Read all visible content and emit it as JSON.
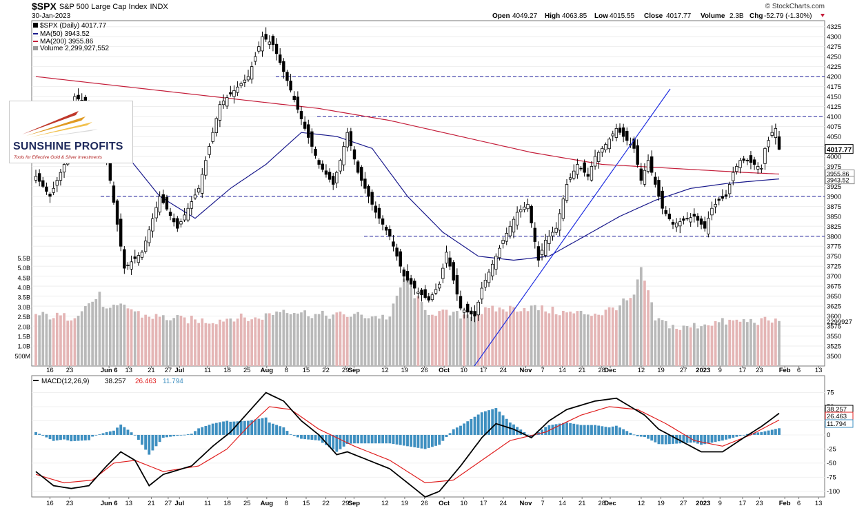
{
  "header": {
    "symbol": "$SPX",
    "name": "S&P 500 Large Cap Index",
    "exchange": "INDX",
    "date": "30-Jan-2023",
    "credit": "© StockCharts.com",
    "open_label": "Open",
    "open": "4049.27",
    "high_label": "High",
    "high": "4063.85",
    "low_label": "Low",
    "low": "4015.55",
    "close_label": "Close",
    "close": "4017.77",
    "volume_label": "Volume",
    "volume": "2.3B",
    "chg_label": "Chg",
    "chg": "-52.79 (-1.30%)"
  },
  "logo": {
    "brand": "SUNSHINE PROFITS",
    "tagline": "Tools for Effective Gold & Silver Investments"
  },
  "legend": {
    "price": "$SPX (Daily) 4017.77",
    "ma50": "MA(50) 3943.52",
    "ma200": "MA(200) 3955.86",
    "volume": "Volume 2,299,927,552",
    "macd_name": "MACD(12,26,9)",
    "macd": "38.257",
    "signal": "26.463",
    "hist": "11.794"
  },
  "colors": {
    "ma50": "#1a1a8c",
    "ma200": "#c41e3a",
    "hline": "#1a1a9a",
    "trend": "#1f2ee0",
    "vol_up": "#e4b5b5",
    "vol_down": "#b9b9b9",
    "hist": "#3e8fc0",
    "macd": "#000000",
    "signal": "#e02020"
  },
  "chart_data": [
    {
      "type": "candlestick",
      "title": "$SPX (Daily)",
      "ylim": [
        3475,
        4340
      ],
      "y_ticks": [
        3500,
        3525,
        3550,
        3575,
        3600,
        3625,
        3650,
        3675,
        3700,
        3725,
        3750,
        3775,
        3800,
        3825,
        3850,
        3875,
        3900,
        3925,
        3950,
        3975,
        4000,
        4025,
        4050,
        4075,
        4100,
        4125,
        4150,
        4175,
        4200,
        4225,
        4250,
        4275,
        4300,
        4325
      ],
      "x_ticks": [
        "16",
        "23",
        "Jun 6",
        "13",
        "21",
        "27",
        "Jul",
        "11",
        "18",
        "25",
        "Aug",
        "8",
        "15",
        "22",
        "29",
        "Sep",
        "12",
        "19",
        "26",
        "Oct",
        "10",
        "17",
        "24",
        "Nov",
        "7",
        "14",
        "21",
        "28",
        "Dec",
        "12",
        "19",
        "27",
        "2023",
        "9",
        "17",
        "23",
        "Feb",
        "6",
        "13"
      ],
      "x_tick_dates": [
        "2022-05-16",
        "2022-05-23",
        "2022-06-06",
        "2022-06-13",
        "2022-06-21",
        "2022-06-27",
        "2022-07-01",
        "2022-07-11",
        "2022-07-18",
        "2022-07-25",
        "2022-08-01",
        "2022-08-08",
        "2022-08-15",
        "2022-08-22",
        "2022-08-29",
        "2022-09-01",
        "2022-09-12",
        "2022-09-19",
        "2022-09-26",
        "2022-10-03",
        "2022-10-10",
        "2022-10-17",
        "2022-10-24",
        "2022-11-01",
        "2022-11-07",
        "2022-11-14",
        "2022-11-21",
        "2022-11-28",
        "2022-12-01",
        "2022-12-12",
        "2022-12-19",
        "2022-12-27",
        "2023-01-03",
        "2023-01-09",
        "2023-01-17",
        "2023-01-23",
        "2023-02-01",
        "2023-02-06",
        "2023-02-13"
      ],
      "close_key": [
        [
          0,
          3950
        ],
        [
          4,
          3900
        ],
        [
          8,
          3980
        ],
        [
          11,
          4150
        ],
        [
          15,
          4125
        ],
        [
          19,
          4050
        ],
        [
          25,
          3720
        ],
        [
          30,
          3760
        ],
        [
          35,
          3900
        ],
        [
          40,
          3820
        ],
        [
          46,
          3920
        ],
        [
          52,
          4130
        ],
        [
          60,
          4200
        ],
        [
          64,
          4300
        ],
        [
          67,
          4280
        ],
        [
          71,
          4190
        ],
        [
          76,
          4070
        ],
        [
          80,
          3980
        ],
        [
          84,
          3930
        ],
        [
          86,
          3990
        ],
        [
          88,
          4060
        ],
        [
          91,
          3960
        ],
        [
          96,
          3860
        ],
        [
          100,
          3800
        ],
        [
          104,
          3700
        ],
        [
          108,
          3660
        ],
        [
          111,
          3640
        ],
        [
          114,
          3680
        ],
        [
          116,
          3760
        ],
        [
          120,
          3620
        ],
        [
          124,
          3600
        ],
        [
          126,
          3670
        ],
        [
          129,
          3730
        ],
        [
          132,
          3790
        ],
        [
          136,
          3860
        ],
        [
          139,
          3880
        ],
        [
          142,
          3740
        ],
        [
          144,
          3790
        ],
        [
          147,
          3820
        ],
        [
          150,
          3930
        ],
        [
          153,
          3980
        ],
        [
          156,
          3950
        ],
        [
          158,
          4000
        ],
        [
          161,
          4030
        ],
        [
          164,
          4070
        ],
        [
          166,
          4050
        ],
        [
          169,
          4020
        ],
        [
          171,
          3940
        ],
        [
          173,
          3990
        ],
        [
          175,
          3930
        ],
        [
          177,
          3870
        ],
        [
          180,
          3830
        ],
        [
          183,
          3840
        ],
        [
          186,
          3850
        ],
        [
          189,
          3820
        ],
        [
          191,
          3870
        ],
        [
          193,
          3890
        ],
        [
          195,
          3900
        ],
        [
          197,
          3960
        ],
        [
          199,
          3990
        ],
        [
          201,
          3990
        ],
        [
          203,
          3980
        ],
        [
          205,
          3970
        ],
        [
          206,
          4020
        ],
        [
          208,
          4060
        ],
        [
          209,
          4070
        ],
        [
          210,
          4017.77
        ]
      ],
      "ma50_key": [
        [
          0,
          4010
        ],
        [
          15,
          4120
        ],
        [
          25,
          4010
        ],
        [
          35,
          3900
        ],
        [
          45,
          3845
        ],
        [
          55,
          3920
        ],
        [
          65,
          3980
        ],
        [
          75,
          4060
        ],
        [
          85,
          4050
        ],
        [
          95,
          4020
        ],
        [
          105,
          3900
        ],
        [
          115,
          3810
        ],
        [
          125,
          3750
        ],
        [
          135,
          3740
        ],
        [
          145,
          3750
        ],
        [
          155,
          3800
        ],
        [
          165,
          3850
        ],
        [
          175,
          3890
        ],
        [
          185,
          3920
        ],
        [
          195,
          3932
        ],
        [
          205,
          3940
        ],
        [
          210,
          3943.52
        ]
      ],
      "ma200_key": [
        [
          0,
          4200
        ],
        [
          20,
          4180
        ],
        [
          40,
          4160
        ],
        [
          60,
          4140
        ],
        [
          80,
          4120
        ],
        [
          100,
          4090
        ],
        [
          120,
          4050
        ],
        [
          140,
          4010
        ],
        [
          160,
          3980
        ],
        [
          180,
          3970
        ],
        [
          200,
          3960
        ],
        [
          210,
          3955.86
        ]
      ],
      "horizontal_levels": [
        4200,
        4100,
        3900,
        3800
      ],
      "last_close": 4017.77
    },
    {
      "type": "bar",
      "title": "Volume",
      "ylim": [
        0,
        5.5
      ],
      "unit": "B",
      "y_ticks": [
        "500M",
        "1.0B",
        "1.5B",
        "2.0B",
        "2.5B",
        "3.0B",
        "3.5B",
        "4.0B",
        "4.5B",
        "5.0B",
        "5.5B"
      ],
      "volume_key": [
        [
          0,
          2.6
        ],
        [
          10,
          2.5
        ],
        [
          18,
          3.6
        ],
        [
          20,
          2.8
        ],
        [
          25,
          3.1
        ],
        [
          30,
          2.6
        ],
        [
          40,
          2.4
        ],
        [
          50,
          2.3
        ],
        [
          56,
          2.5
        ],
        [
          62,
          2.4
        ],
        [
          70,
          2.9
        ],
        [
          80,
          2.6
        ],
        [
          90,
          2.6
        ],
        [
          100,
          2.5
        ],
        [
          104,
          4.5
        ],
        [
          110,
          2.8
        ],
        [
          120,
          2.6
        ],
        [
          130,
          2.9
        ],
        [
          140,
          3.0
        ],
        [
          150,
          2.7
        ],
        [
          160,
          2.7
        ],
        [
          169,
          3.5
        ],
        [
          171,
          5.0
        ],
        [
          175,
          2.4
        ],
        [
          182,
          1.9
        ],
        [
          190,
          2.2
        ],
        [
          200,
          2.3
        ],
        [
          210,
          2.299927552
        ]
      ],
      "last": "2299927"
    },
    {
      "type": "line",
      "title": "MACD(12,26,9)",
      "ylim": [
        -110,
        105
      ],
      "y_ticks": [
        75,
        50,
        25,
        0,
        -25,
        -50,
        -75,
        -100
      ],
      "macd_key": [
        [
          0,
          -65
        ],
        [
          5,
          -90
        ],
        [
          10,
          -95
        ],
        [
          15,
          -90
        ],
        [
          20,
          -55
        ],
        [
          24,
          -30
        ],
        [
          28,
          -45
        ],
        [
          32,
          -90
        ],
        [
          36,
          -70
        ],
        [
          44,
          -55
        ],
        [
          50,
          -20
        ],
        [
          55,
          5
        ],
        [
          60,
          40
        ],
        [
          65,
          75
        ],
        [
          70,
          60
        ],
        [
          75,
          25
        ],
        [
          80,
          0
        ],
        [
          85,
          -35
        ],
        [
          88,
          -30
        ],
        [
          94,
          -45
        ],
        [
          100,
          -60
        ],
        [
          106,
          -90
        ],
        [
          110,
          -110
        ],
        [
          114,
          -100
        ],
        [
          120,
          -55
        ],
        [
          126,
          -5
        ],
        [
          130,
          20
        ],
        [
          135,
          10
        ],
        [
          140,
          -5
        ],
        [
          145,
          25
        ],
        [
          150,
          45
        ],
        [
          158,
          60
        ],
        [
          164,
          65
        ],
        [
          168,
          50
        ],
        [
          172,
          35
        ],
        [
          176,
          10
        ],
        [
          182,
          -10
        ],
        [
          188,
          -30
        ],
        [
          194,
          -30
        ],
        [
          200,
          -5
        ],
        [
          205,
          15
        ],
        [
          210,
          38.257
        ]
      ],
      "signal_key": [
        [
          0,
          -70
        ],
        [
          8,
          -85
        ],
        [
          16,
          -80
        ],
        [
          22,
          -50
        ],
        [
          28,
          -45
        ],
        [
          36,
          -65
        ],
        [
          46,
          -55
        ],
        [
          54,
          -25
        ],
        [
          60,
          15
        ],
        [
          66,
          50
        ],
        [
          72,
          45
        ],
        [
          80,
          10
        ],
        [
          90,
          -20
        ],
        [
          100,
          -45
        ],
        [
          110,
          -85
        ],
        [
          118,
          -80
        ],
        [
          126,
          -45
        ],
        [
          134,
          -10
        ],
        [
          144,
          5
        ],
        [
          154,
          35
        ],
        [
          162,
          50
        ],
        [
          170,
          45
        ],
        [
          178,
          20
        ],
        [
          186,
          -10
        ],
        [
          194,
          -20
        ],
        [
          202,
          0
        ],
        [
          210,
          26.463
        ]
      ],
      "current": {
        "macd": 38.257,
        "signal": 26.463,
        "hist": 11.794
      }
    }
  ]
}
